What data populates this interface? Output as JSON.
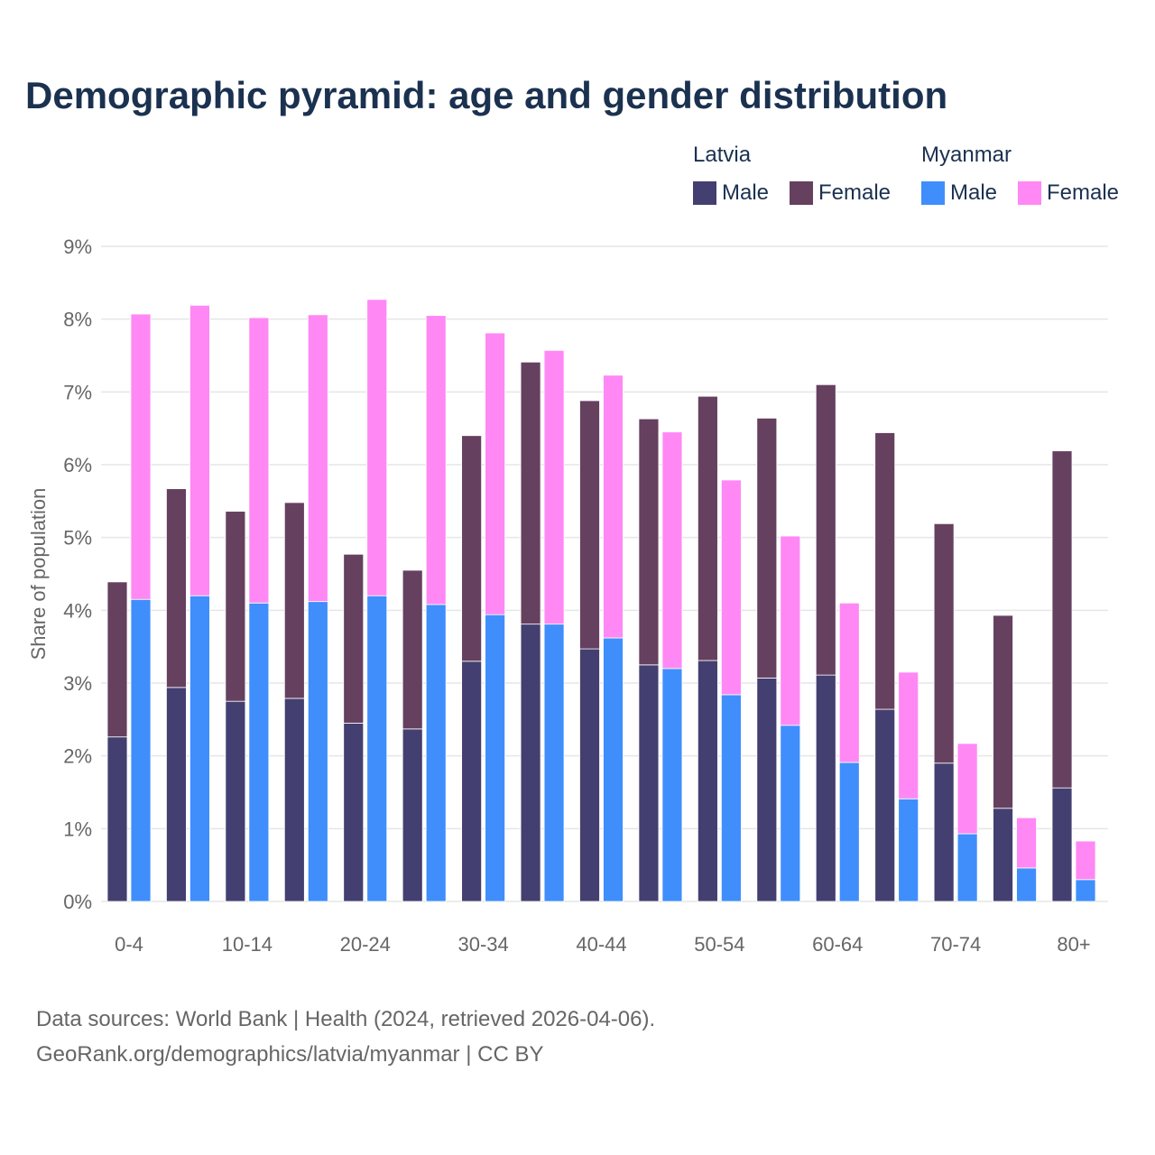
{
  "chart_data": {
    "type": "bar",
    "stacked": true,
    "title": "Demographic pyramid: age and gender distribution",
    "ylabel": "Share of population",
    "xlabel": "",
    "ylim": [
      0,
      9
    ],
    "yticks": [
      "0%",
      "1%",
      "2%",
      "3%",
      "4%",
      "5%",
      "6%",
      "7%",
      "8%",
      "9%"
    ],
    "grid": true,
    "legend_placement": "top-right",
    "categories": [
      "0-4",
      "5-9",
      "10-14",
      "15-19",
      "20-24",
      "25-29",
      "30-34",
      "35-39",
      "40-44",
      "45-49",
      "50-54",
      "55-59",
      "60-64",
      "65-69",
      "70-74",
      "75-79",
      "80+"
    ],
    "xtick_labels": [
      "0-4",
      "10-14",
      "20-24",
      "30-34",
      "40-44",
      "50-54",
      "60-64",
      "70-74",
      "80+"
    ],
    "groups": [
      {
        "name": "Latvia",
        "series": [
          {
            "name": "Male",
            "color": "#433f70",
            "values": [
              2.26,
              2.94,
              2.75,
              2.79,
              2.45,
              2.37,
              3.3,
              3.81,
              3.47,
              3.25,
              3.31,
              3.07,
              3.11,
              2.64,
              1.9,
              1.28,
              1.56
            ]
          },
          {
            "name": "Female",
            "color": "#66405f",
            "values": [
              2.13,
              2.73,
              2.61,
              2.69,
              2.32,
              2.18,
              3.1,
              3.6,
              3.41,
              3.38,
              3.63,
              3.57,
              3.99,
              3.8,
              3.29,
              2.65,
              4.63
            ]
          }
        ]
      },
      {
        "name": "Myanmar",
        "series": [
          {
            "name": "Male",
            "color": "#3f8efc",
            "values": [
              4.15,
              4.2,
              4.1,
              4.12,
              4.2,
              4.08,
              3.94,
              3.81,
              3.62,
              3.2,
              2.84,
              2.42,
              1.91,
              1.41,
              0.93,
              0.46,
              0.3
            ]
          },
          {
            "name": "Female",
            "color": "#ff88f5",
            "values": [
              3.92,
              3.99,
              3.92,
              3.94,
              4.07,
              3.97,
              3.87,
              3.76,
              3.61,
              3.25,
              2.95,
              2.6,
              2.19,
              1.74,
              1.24,
              0.69,
              0.53
            ]
          }
        ]
      }
    ]
  },
  "footer": {
    "line1": "Data sources: World Bank | Health (2024, retrieved 2026-04-06).",
    "line2": "GeoRank.org/demographics/latvia/myanmar | CC BY"
  }
}
